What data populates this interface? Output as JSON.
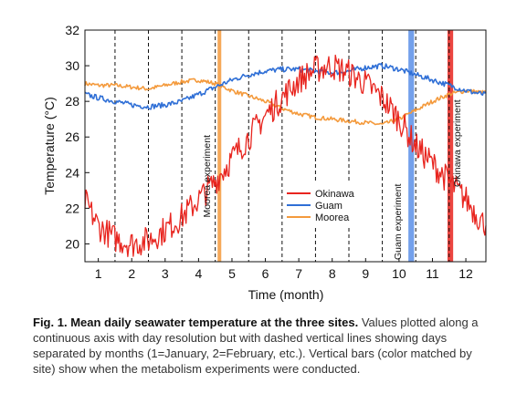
{
  "chart_data": {
    "type": "line",
    "xlabel": "Time (month)",
    "ylabel": "Temperature (°C)",
    "xlim": [
      0.6,
      12.6
    ],
    "ylim": [
      19,
      32
    ],
    "x_ticks": [
      1,
      2,
      3,
      4,
      5,
      6,
      7,
      8,
      9,
      10,
      11,
      12
    ],
    "y_ticks": [
      20,
      22,
      24,
      26,
      28,
      30,
      32
    ],
    "month_dividers": [
      1.5,
      2.5,
      3.5,
      4.5,
      5.5,
      6.5,
      7.5,
      8.5,
      9.5,
      10.5,
      11.5
    ],
    "legend_placement": "lower-right",
    "grid": false,
    "series": [
      {
        "name": "Okinawa",
        "color": "#e8251f",
        "noise": 0.8,
        "x": [
          0.6,
          1.0,
          1.5,
          2.0,
          2.5,
          3.0,
          3.5,
          4.0,
          4.5,
          5.0,
          5.5,
          6.0,
          6.5,
          7.0,
          7.5,
          8.0,
          8.5,
          9.0,
          9.5,
          10.0,
          10.5,
          11.0,
          11.5,
          12.0,
          12.5
        ],
        "values": [
          22.4,
          21.0,
          20.3,
          20.0,
          20.2,
          20.8,
          21.5,
          22.5,
          23.5,
          24.8,
          26.0,
          27.2,
          28.2,
          29.2,
          29.8,
          30.0,
          29.6,
          29.0,
          28.2,
          27.0,
          25.5,
          24.5,
          23.5,
          22.5,
          21.2
        ]
      },
      {
        "name": "Guam",
        "color": "#2f6fd6",
        "noise": 0.15,
        "x": [
          0.6,
          1.0,
          1.5,
          2.0,
          2.5,
          3.0,
          3.5,
          4.0,
          4.5,
          5.0,
          5.5,
          6.0,
          6.5,
          7.0,
          7.5,
          8.0,
          8.5,
          9.0,
          9.5,
          10.0,
          10.5,
          11.0,
          11.5,
          12.0,
          12.5
        ],
        "values": [
          28.4,
          28.2,
          28.0,
          27.8,
          27.7,
          27.8,
          28.0,
          28.4,
          28.8,
          29.2,
          29.5,
          29.7,
          29.8,
          29.8,
          29.7,
          29.6,
          29.7,
          29.9,
          30.0,
          29.8,
          29.5,
          29.2,
          28.9,
          28.6,
          28.4
        ]
      },
      {
        "name": "Moorea",
        "color": "#f49a3c",
        "noise": 0.12,
        "x": [
          0.6,
          1.0,
          1.5,
          2.0,
          2.5,
          3.0,
          3.5,
          4.0,
          4.5,
          5.0,
          5.5,
          6.0,
          6.5,
          7.0,
          7.5,
          8.0,
          8.5,
          9.0,
          9.5,
          10.0,
          10.5,
          11.0,
          11.5,
          12.0,
          12.5
        ],
        "values": [
          29.0,
          28.9,
          28.9,
          28.8,
          28.7,
          28.9,
          29.1,
          29.2,
          29.0,
          28.6,
          28.3,
          28.0,
          27.6,
          27.3,
          27.1,
          27.0,
          26.9,
          26.8,
          26.7,
          27.0,
          27.5,
          28.0,
          28.4,
          28.6,
          28.5
        ]
      }
    ],
    "experiments": [
      {
        "label": "Moorea experiment",
        "x_start": 4.57,
        "x_end": 4.68,
        "color": "#f49a3c"
      },
      {
        "label": "Guam experiment",
        "x_start": 10.28,
        "x_end": 10.45,
        "color": "#5b8fe8"
      },
      {
        "label": "Okinawa experiment",
        "x_start": 11.45,
        "x_end": 11.62,
        "color": "#e8251f"
      }
    ]
  },
  "caption": {
    "label": "Fig. 1.",
    "title": "Mean daily seawater temperature at the three sites.",
    "body": "Values plotted along a continuous axis with day resolution but with dashed vertical lines showing days separated by months (1=January, 2=February, etc.). Vertical bars (color matched by site) show when the metabolism experiments were conducted."
  }
}
